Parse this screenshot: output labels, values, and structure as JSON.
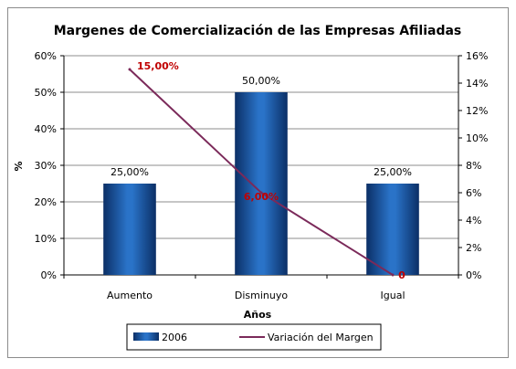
{
  "chart_data": {
    "type": "bar",
    "title": "Margenes de Comercialización de las Empresas Afiliadas",
    "xlabel": "Años",
    "ylabel": "%",
    "categories": [
      "Aumento",
      "Disminuyo",
      "Igual"
    ],
    "ylim": [
      0,
      60
    ],
    "y2lim": [
      0,
      16
    ],
    "y_ticks": [
      "0%",
      "10%",
      "20%",
      "30%",
      "40%",
      "50%",
      "60%"
    ],
    "y2_ticks": [
      "0%",
      "2%",
      "4%",
      "6%",
      "8%",
      "10%",
      "12%",
      "14%",
      "16%"
    ],
    "grid": true,
    "legend_position": "bottom",
    "series": [
      {
        "name": "2006",
        "type": "bar",
        "axis": "left",
        "values": [
          25,
          50,
          25
        ],
        "labels": [
          "25,00%",
          "50,00%",
          "25,00%"
        ],
        "color": "#1f5fb0"
      },
      {
        "name": "Variación del Margen",
        "type": "line",
        "axis": "right",
        "values": [
          15,
          6,
          0
        ],
        "labels": [
          "15,00%",
          "6,00%",
          "0"
        ],
        "color": "#7b2a5a",
        "label_color": "#c00000"
      }
    ]
  }
}
